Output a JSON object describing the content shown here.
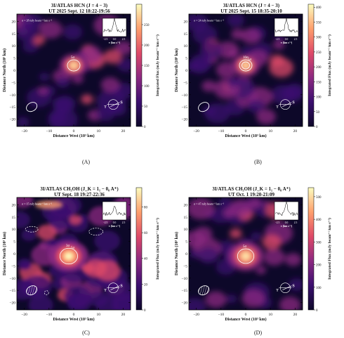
{
  "panels": [
    {
      "id": "A",
      "title1": "3I/ATLAS HCN (J = 4 − 3)",
      "title2": "UT 2025 Sept. 12 18:22-19:56",
      "sigma": "σ = 28 mJy beam⁻¹ km s⁻¹",
      "cbar_ticks": [
        "0",
        "50",
        "100",
        "150",
        "200",
        "250"
      ],
      "cbar_max": 300,
      "caption": "(A)",
      "contour_labels": [
        "5σ"
      ],
      "peak": [
        0,
        2
      ],
      "intensity": "high"
    },
    {
      "id": "B",
      "title1": "3I/ATLAS HCN (J = 4 − 3)",
      "title2": "UT 2025 Sept. 15 18:35-20:10",
      "sigma": "σ = 24 mJy beam⁻¹ km s⁻¹",
      "cbar_ticks": [
        "0",
        "50",
        "100",
        "150",
        "200",
        "250",
        "300",
        "350",
        "400"
      ],
      "cbar_max": 410,
      "caption": "(B)",
      "contour_labels": [
        "10σ",
        "5σ"
      ],
      "peak": [
        0,
        2
      ],
      "intensity": "high"
    },
    {
      "id": "C",
      "title1": "3I/ATLAS CH₃OH (J_K = 1₁ − 0₀ A⁺)",
      "title2": "UT Sept. 18 19:27-22:36",
      "sigma": "σ = 15 mJy beam⁻¹ km s⁻¹",
      "cbar_ticks": [
        "0",
        "20",
        "40",
        "60",
        "80"
      ],
      "cbar_max": 95,
      "caption": "(C)",
      "contour_labels": [
        "3σ",
        "5σ"
      ],
      "peak": [
        -2,
        -1
      ],
      "intensity": "noisy"
    },
    {
      "id": "D",
      "title1": "3I/ATLAS CH₃OH (J_K = 1₁ − 0₀ A⁺)",
      "title2": "UT Oct. 1 19:20-21:09",
      "sigma": "σ = 47 mJy beam⁻¹ km s⁻¹",
      "cbar_ticks": [
        "0",
        "100",
        "200",
        "300",
        "400",
        "500"
      ],
      "cbar_max": 540,
      "caption": "(D)",
      "contour_labels": [
        "5σ"
      ],
      "peak": [
        0,
        -1
      ],
      "intensity": "medium"
    }
  ],
  "common": {
    "xlabel": "Distance West (10³ km)",
    "ylabel": "Distance North (10³ km)",
    "cbar_label": "Integrated Flux (mJy beam⁻¹ km s⁻¹)",
    "xticks": [
      "−20",
      "−10",
      "0",
      "10",
      "20"
    ],
    "yticks": [
      "20",
      "15",
      "10",
      "5",
      "0",
      "−5",
      "−10",
      "−15",
      "−20"
    ],
    "inset_xticks": [
      "−2.5",
      "0.0",
      "2.5"
    ],
    "inset_xlabel": "v (km s⁻¹)",
    "sun_label": "S",
    "tail_label": "T",
    "colormap": [
      "#0d0829",
      "#3b0f6f",
      "#8c2981",
      "#de4968",
      "#fe9f6d",
      "#fcfdbf"
    ]
  }
}
